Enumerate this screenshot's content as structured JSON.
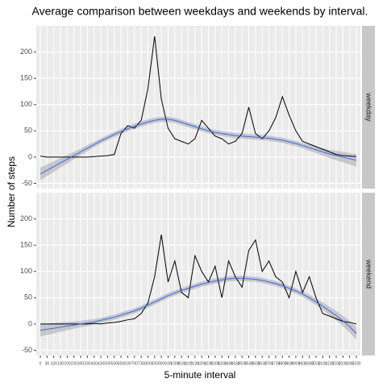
{
  "chart_data": {
    "type": "line",
    "title": "Average comparison between weekdays and weekends by interval.",
    "x_label": "5-minute interval",
    "y_label": "Number of steps",
    "categories": [
      "0",
      "30",
      "100",
      "130",
      "200",
      "230",
      "300",
      "330",
      "400",
      "430",
      "500",
      "530",
      "600",
      "630",
      "700",
      "730",
      "800",
      "830",
      "900",
      "930",
      "1000",
      "1030",
      "1100",
      "1130",
      "1200",
      "1230",
      "1300",
      "1330",
      "1400",
      "1430",
      "1500",
      "1530",
      "1600",
      "1630",
      "1700",
      "1730",
      "1800",
      "1830",
      "1900",
      "1930",
      "2000",
      "2030",
      "2100",
      "2130",
      "2200",
      "2230",
      "2300",
      "2330"
    ],
    "ylim": [
      -60,
      250
    ],
    "yticks": [
      -50,
      0,
      50,
      100,
      150,
      200
    ],
    "grid": true,
    "line_color": "#000000",
    "smooth_color": "#3366ff",
    "band_color": "#999999",
    "panels": [
      {
        "strip": "weekday",
        "values": [
          2,
          0,
          0,
          0,
          0,
          0,
          0,
          0,
          1,
          2,
          3,
          5,
          45,
          60,
          55,
          70,
          130,
          230,
          110,
          55,
          35,
          30,
          25,
          35,
          70,
          55,
          40,
          35,
          25,
          30,
          45,
          95,
          45,
          35,
          50,
          75,
          115,
          80,
          50,
          30,
          25,
          20,
          15,
          10,
          5,
          3,
          2,
          1
        ],
        "smooth": [
          -32,
          -25,
          -18,
          -11,
          -4,
          3,
          10,
          17,
          24,
          31,
          37,
          43,
          49,
          54,
          59,
          63,
          67,
          70,
          72,
          72,
          70,
          66,
          62,
          58,
          54,
          50,
          47,
          45,
          43,
          41,
          40,
          39,
          38,
          37,
          36,
          34,
          32,
          29,
          26,
          22,
          18,
          14,
          10,
          6,
          3,
          0,
          -3,
          -6
        ],
        "band_lower": [
          -44,
          -36,
          -28,
          -20,
          -12,
          -4,
          4,
          11,
          19,
          26,
          32,
          38,
          44,
          49,
          54,
          58,
          62,
          65,
          67,
          67,
          65,
          61,
          57,
          53,
          49,
          45,
          42,
          40,
          38,
          36,
          35,
          34,
          33,
          32,
          31,
          29,
          27,
          24,
          21,
          17,
          12,
          8,
          3,
          -2,
          -6,
          -10,
          -14,
          -18
        ],
        "band_upper": [
          -20,
          -14,
          -8,
          -2,
          4,
          10,
          16,
          23,
          29,
          36,
          42,
          48,
          54,
          59,
          64,
          68,
          72,
          75,
          77,
          77,
          75,
          71,
          67,
          63,
          59,
          55,
          52,
          50,
          48,
          46,
          45,
          44,
          43,
          42,
          41,
          39,
          37,
          34,
          31,
          27,
          24,
          20,
          17,
          14,
          12,
          10,
          8,
          6
        ]
      },
      {
        "strip": "weekend",
        "values": [
          0,
          0,
          0,
          0,
          0,
          0,
          0,
          0,
          1,
          0,
          2,
          3,
          5,
          8,
          10,
          20,
          40,
          90,
          170,
          80,
          120,
          60,
          50,
          130,
          100,
          80,
          110,
          50,
          120,
          90,
          70,
          140,
          160,
          100,
          120,
          90,
          80,
          50,
          100,
          60,
          90,
          50,
          20,
          15,
          10,
          5,
          3,
          0
        ],
        "smooth": [
          -12,
          -10,
          -8,
          -6,
          -4,
          -2,
          0,
          2,
          4,
          7,
          10,
          13,
          17,
          21,
          25,
          30,
          36,
          42,
          48,
          54,
          59,
          64,
          68,
          72,
          76,
          79,
          82,
          84,
          86,
          87,
          87,
          86,
          85,
          83,
          80,
          77,
          73,
          68,
          63,
          57,
          50,
          42,
          34,
          25,
          16,
          6,
          -5,
          -18
        ],
        "band_lower": [
          -24,
          -21,
          -18,
          -15,
          -12,
          -9,
          -6,
          -4,
          -1,
          2,
          5,
          8,
          12,
          16,
          20,
          25,
          31,
          37,
          43,
          49,
          54,
          59,
          63,
          67,
          71,
          74,
          77,
          79,
          81,
          82,
          82,
          81,
          80,
          78,
          75,
          72,
          68,
          63,
          58,
          52,
          44,
          36,
          27,
          17,
          7,
          -4,
          -16,
          -30
        ],
        "band_upper": [
          0,
          1,
          2,
          3,
          4,
          5,
          6,
          8,
          9,
          12,
          15,
          18,
          22,
          26,
          30,
          35,
          41,
          47,
          53,
          59,
          64,
          69,
          73,
          77,
          81,
          84,
          87,
          89,
          91,
          92,
          92,
          91,
          90,
          88,
          85,
          82,
          78,
          73,
          68,
          62,
          56,
          48,
          41,
          33,
          25,
          16,
          6,
          -6
        ]
      }
    ]
  }
}
